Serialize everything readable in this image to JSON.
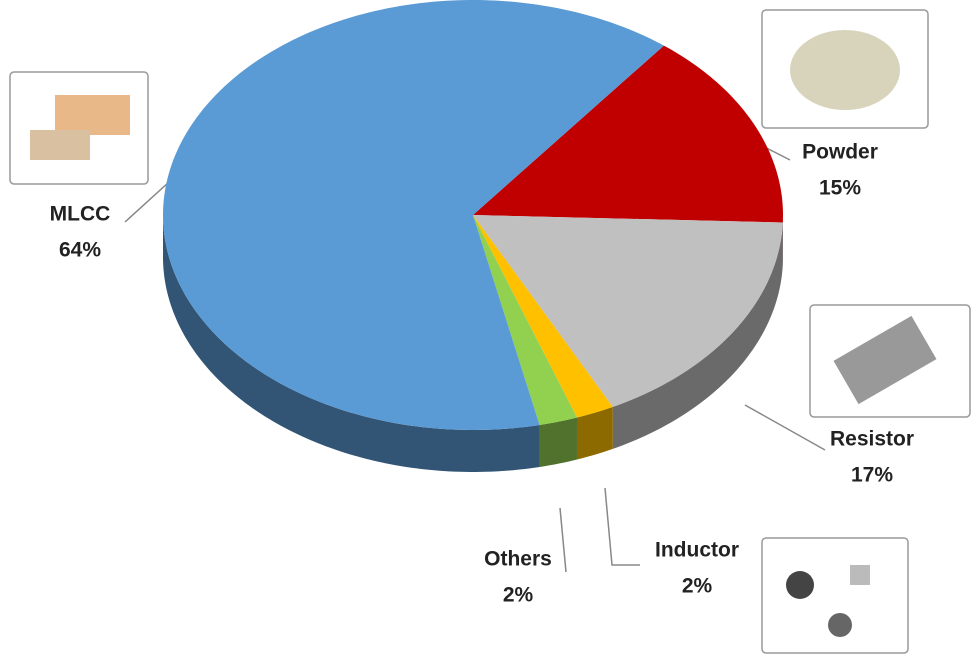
{
  "chart_data": {
    "type": "pie",
    "categories": [
      "Powder",
      "Resistor",
      "Inductor",
      "Others",
      "MLCC"
    ],
    "values": [
      15,
      17,
      2,
      2,
      64
    ],
    "value_labels": [
      "15%",
      "17%",
      "2%",
      "2%",
      "64%"
    ],
    "colors": [
      "#c00000",
      "#c0c0c0",
      "#ffc000",
      "#92d050",
      "#5b9bd5"
    ]
  }
}
